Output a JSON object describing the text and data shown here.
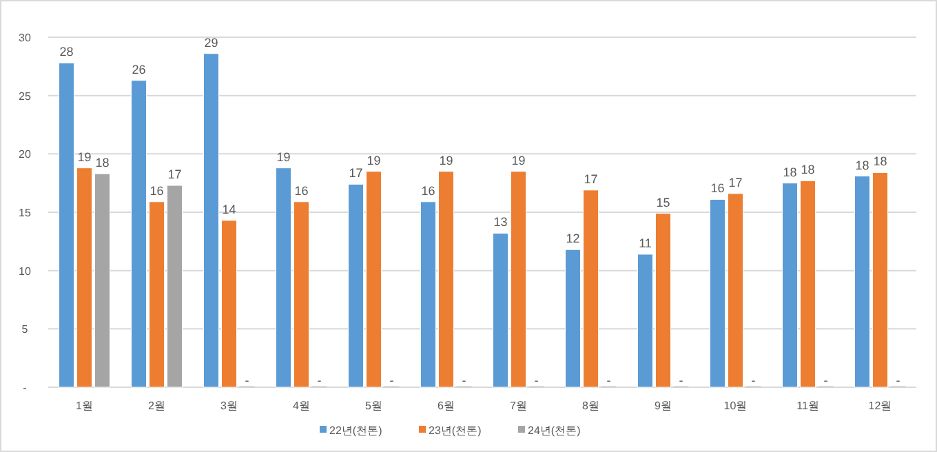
{
  "chart_data": {
    "type": "bar",
    "categories": [
      "1월",
      "2월",
      "3월",
      "4월",
      "5월",
      "6월",
      "7월",
      "8월",
      "9월",
      "10월",
      "11월",
      "12월"
    ],
    "series": [
      {
        "name": "22년(천톤)",
        "color": "#5b9bd5",
        "values": [
          27.8,
          26.3,
          28.6,
          18.8,
          17.4,
          15.9,
          13.2,
          11.8,
          11.4,
          16.1,
          17.5,
          18.1
        ],
        "value_labels": [
          "28",
          "26",
          "29",
          "19",
          "17",
          "16",
          "13",
          "12",
          "11",
          "16",
          "18",
          "18"
        ]
      },
      {
        "name": "23년(천톤)",
        "color": "#ed7d31",
        "values": [
          18.8,
          15.9,
          14.3,
          15.9,
          18.5,
          18.5,
          18.5,
          16.9,
          14.9,
          16.6,
          17.7,
          18.4
        ],
        "value_labels": [
          "19",
          "16",
          "14",
          "16",
          "19",
          "19",
          "19",
          "17",
          "15",
          "17",
          "18",
          "18"
        ]
      },
      {
        "name": "24년(천톤)",
        "color": "#a5a5a5",
        "values": [
          18.3,
          17.3,
          0,
          0,
          0,
          0,
          0,
          0,
          0,
          0,
          0,
          0
        ],
        "value_labels": [
          "18",
          "17",
          "-",
          "-",
          "-",
          "-",
          "-",
          "-",
          "-",
          "-",
          "-",
          "-"
        ]
      }
    ],
    "ylim": [
      0,
      30
    ],
    "yticks": [
      {
        "value": 0,
        "label": "-"
      },
      5,
      10,
      15,
      20,
      25,
      30
    ],
    "grid": "y",
    "legend": "bottom"
  }
}
